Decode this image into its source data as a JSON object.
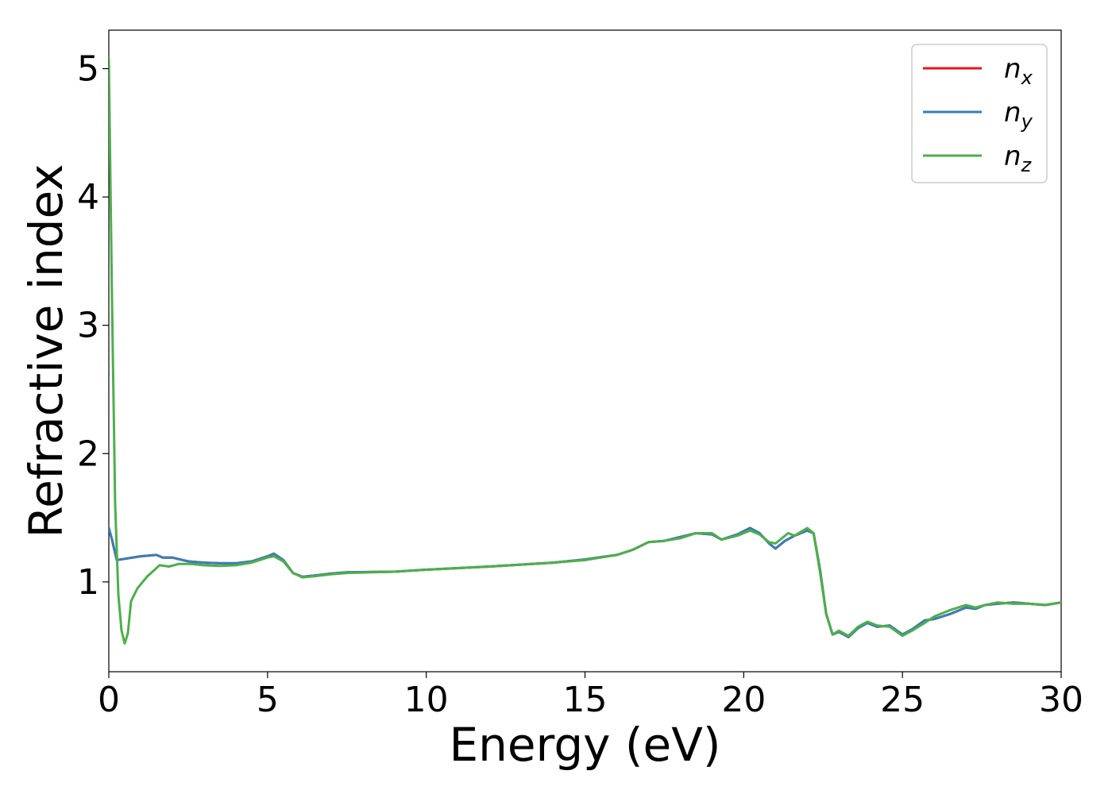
{
  "chart_data": {
    "type": "line",
    "xlabel": "Energy (eV)",
    "ylabel": "Refractive index",
    "xlim": [
      0,
      30
    ],
    "ylim": [
      0.3,
      5.3
    ],
    "xticks": [
      0,
      5,
      10,
      15,
      20,
      25,
      30
    ],
    "yticks": [
      1,
      2,
      3,
      4,
      5
    ],
    "grid": false,
    "legend_position": "top-right",
    "series": [
      {
        "name": "n",
        "sub": "x",
        "color": "#e41a1c",
        "points": [
          [
            0,
            1.42
          ],
          [
            0.1,
            1.33
          ],
          [
            0.25,
            1.17
          ],
          [
            0.5,
            1.18
          ],
          [
            1,
            1.2
          ],
          [
            1.5,
            1.21
          ],
          [
            1.7,
            1.19
          ],
          [
            2,
            1.19
          ],
          [
            2.5,
            1.16
          ],
          [
            3,
            1.15
          ],
          [
            3.5,
            1.145
          ],
          [
            4,
            1.145
          ],
          [
            4.5,
            1.16
          ],
          [
            5,
            1.2
          ],
          [
            5.2,
            1.22
          ],
          [
            5.5,
            1.17
          ],
          [
            5.8,
            1.07
          ],
          [
            6.1,
            1.04
          ],
          [
            6.5,
            1.05
          ],
          [
            7,
            1.065
          ],
          [
            7.5,
            1.075
          ],
          [
            9,
            1.08
          ],
          [
            10,
            1.095
          ],
          [
            12,
            1.12
          ],
          [
            14,
            1.15
          ],
          [
            15,
            1.175
          ],
          [
            16,
            1.21
          ],
          [
            16.5,
            1.25
          ],
          [
            17,
            1.31
          ],
          [
            17.5,
            1.32
          ],
          [
            18,
            1.35
          ],
          [
            18.5,
            1.38
          ],
          [
            19,
            1.37
          ],
          [
            19.3,
            1.33
          ],
          [
            19.8,
            1.37
          ],
          [
            20.2,
            1.42
          ],
          [
            20.5,
            1.38
          ],
          [
            20.8,
            1.3
          ],
          [
            21,
            1.26
          ],
          [
            21.3,
            1.32
          ],
          [
            21.6,
            1.36
          ],
          [
            22,
            1.4
          ],
          [
            22.2,
            1.38
          ],
          [
            22.4,
            1.1
          ],
          [
            22.6,
            0.75
          ],
          [
            22.8,
            0.59
          ],
          [
            23,
            0.61
          ],
          [
            23.3,
            0.57
          ],
          [
            23.6,
            0.64
          ],
          [
            23.9,
            0.68
          ],
          [
            24.2,
            0.65
          ],
          [
            24.6,
            0.66
          ],
          [
            25,
            0.59
          ],
          [
            25.3,
            0.63
          ],
          [
            25.7,
            0.7
          ],
          [
            26,
            0.71
          ],
          [
            26.5,
            0.75
          ],
          [
            27,
            0.8
          ],
          [
            27.3,
            0.79
          ],
          [
            27.6,
            0.82
          ],
          [
            28,
            0.83
          ],
          [
            28.5,
            0.84
          ],
          [
            29,
            0.83
          ],
          [
            29.5,
            0.82
          ],
          [
            30,
            0.84
          ]
        ]
      },
      {
        "name": "n",
        "sub": "y",
        "color": "#377eb8",
        "points": [
          [
            0,
            1.42
          ],
          [
            0.1,
            1.33
          ],
          [
            0.25,
            1.17
          ],
          [
            0.5,
            1.18
          ],
          [
            1,
            1.2
          ],
          [
            1.5,
            1.21
          ],
          [
            1.7,
            1.19
          ],
          [
            2,
            1.19
          ],
          [
            2.5,
            1.16
          ],
          [
            3,
            1.15
          ],
          [
            3.5,
            1.145
          ],
          [
            4,
            1.145
          ],
          [
            4.5,
            1.16
          ],
          [
            5,
            1.2
          ],
          [
            5.2,
            1.22
          ],
          [
            5.5,
            1.17
          ],
          [
            5.8,
            1.07
          ],
          [
            6.1,
            1.04
          ],
          [
            6.5,
            1.05
          ],
          [
            7,
            1.065
          ],
          [
            7.5,
            1.075
          ],
          [
            9,
            1.08
          ],
          [
            10,
            1.095
          ],
          [
            12,
            1.12
          ],
          [
            14,
            1.15
          ],
          [
            15,
            1.175
          ],
          [
            16,
            1.21
          ],
          [
            16.5,
            1.25
          ],
          [
            17,
            1.31
          ],
          [
            17.5,
            1.32
          ],
          [
            18,
            1.35
          ],
          [
            18.5,
            1.38
          ],
          [
            19,
            1.37
          ],
          [
            19.3,
            1.33
          ],
          [
            19.8,
            1.37
          ],
          [
            20.2,
            1.42
          ],
          [
            20.5,
            1.38
          ],
          [
            20.8,
            1.3
          ],
          [
            21,
            1.26
          ],
          [
            21.3,
            1.32
          ],
          [
            21.6,
            1.36
          ],
          [
            22,
            1.4
          ],
          [
            22.2,
            1.38
          ],
          [
            22.4,
            1.1
          ],
          [
            22.6,
            0.75
          ],
          [
            22.8,
            0.59
          ],
          [
            23,
            0.61
          ],
          [
            23.3,
            0.57
          ],
          [
            23.6,
            0.64
          ],
          [
            23.9,
            0.68
          ],
          [
            24.2,
            0.65
          ],
          [
            24.6,
            0.66
          ],
          [
            25,
            0.59
          ],
          [
            25.3,
            0.63
          ],
          [
            25.7,
            0.7
          ],
          [
            26,
            0.71
          ],
          [
            26.5,
            0.75
          ],
          [
            27,
            0.8
          ],
          [
            27.3,
            0.79
          ],
          [
            27.6,
            0.82
          ],
          [
            28,
            0.83
          ],
          [
            28.5,
            0.84
          ],
          [
            29,
            0.83
          ],
          [
            29.5,
            0.82
          ],
          [
            30,
            0.84
          ]
        ]
      },
      {
        "name": "n",
        "sub": "z",
        "color": "#4daf4a",
        "points": [
          [
            0,
            5.08
          ],
          [
            0.1,
            3.2
          ],
          [
            0.2,
            1.6
          ],
          [
            0.3,
            0.9
          ],
          [
            0.4,
            0.62
          ],
          [
            0.5,
            0.52
          ],
          [
            0.6,
            0.6
          ],
          [
            0.7,
            0.85
          ],
          [
            0.9,
            0.95
          ],
          [
            1.2,
            1.04
          ],
          [
            1.6,
            1.13
          ],
          [
            1.9,
            1.12
          ],
          [
            2.2,
            1.14
          ],
          [
            2.6,
            1.14
          ],
          [
            3,
            1.13
          ],
          [
            3.5,
            1.125
          ],
          [
            4,
            1.13
          ],
          [
            4.5,
            1.15
          ],
          [
            5,
            1.19
          ],
          [
            5.2,
            1.2
          ],
          [
            5.5,
            1.16
          ],
          [
            5.8,
            1.07
          ],
          [
            6.1,
            1.035
          ],
          [
            6.5,
            1.045
          ],
          [
            7,
            1.06
          ],
          [
            7.5,
            1.07
          ],
          [
            9,
            1.08
          ],
          [
            10,
            1.095
          ],
          [
            12,
            1.12
          ],
          [
            14,
            1.15
          ],
          [
            15,
            1.17
          ],
          [
            16,
            1.21
          ],
          [
            16.5,
            1.25
          ],
          [
            17,
            1.31
          ],
          [
            17.5,
            1.32
          ],
          [
            18,
            1.34
          ],
          [
            18.5,
            1.38
          ],
          [
            19,
            1.38
          ],
          [
            19.3,
            1.33
          ],
          [
            19.8,
            1.36
          ],
          [
            20.2,
            1.4
          ],
          [
            20.5,
            1.37
          ],
          [
            20.8,
            1.31
          ],
          [
            21,
            1.3
          ],
          [
            21.4,
            1.38
          ],
          [
            21.6,
            1.36
          ],
          [
            22,
            1.42
          ],
          [
            22.2,
            1.38
          ],
          [
            22.4,
            1.08
          ],
          [
            22.6,
            0.75
          ],
          [
            22.8,
            0.59
          ],
          [
            23,
            0.62
          ],
          [
            23.3,
            0.58
          ],
          [
            23.6,
            0.65
          ],
          [
            23.9,
            0.69
          ],
          [
            24.2,
            0.66
          ],
          [
            24.6,
            0.65
          ],
          [
            25,
            0.58
          ],
          [
            25.3,
            0.62
          ],
          [
            25.7,
            0.68
          ],
          [
            26,
            0.73
          ],
          [
            26.5,
            0.78
          ],
          [
            27,
            0.82
          ],
          [
            27.3,
            0.8
          ],
          [
            27.6,
            0.82
          ],
          [
            28,
            0.84
          ],
          [
            28.5,
            0.83
          ],
          [
            29,
            0.83
          ],
          [
            29.5,
            0.82
          ],
          [
            30,
            0.84
          ]
        ]
      }
    ]
  }
}
